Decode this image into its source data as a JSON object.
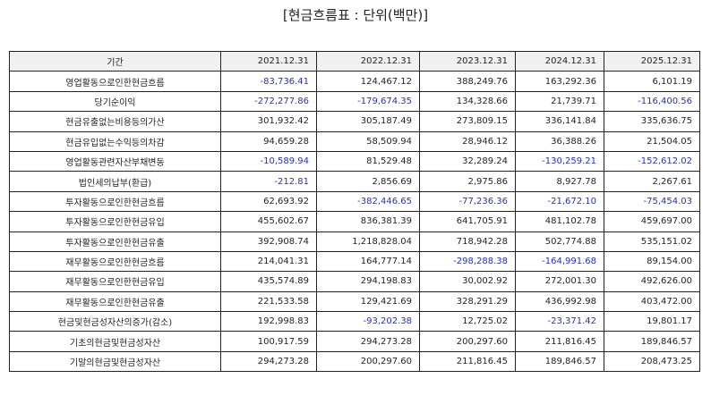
{
  "title": "[현금흐름표 : 단위(백만)]",
  "header": {
    "period_label": "기간",
    "years": [
      "2021.12.31",
      "2022.12.31",
      "2023.12.31",
      "2024.12.31",
      "2025.12.31"
    ]
  },
  "rows": [
    {
      "label": "영업활동으로인한현금흐름",
      "values": [
        "-83,736.41",
        "124,467.12",
        "388,249.76",
        "163,292.36",
        "6,101.19"
      ]
    },
    {
      "label": "당기순이익",
      "values": [
        "-272,277.86",
        "-179,674.35",
        "134,328.66",
        "21,739.71",
        "-116,400.56"
      ]
    },
    {
      "label": "현금유출없는비용등의가산",
      "values": [
        "301,932.42",
        "305,187.49",
        "273,809.15",
        "336,141.84",
        "335,636.75"
      ]
    },
    {
      "label": "현금유입없는수익등의차감",
      "values": [
        "94,659.28",
        "58,509.94",
        "28,946.12",
        "36,388.26",
        "21,504.05"
      ]
    },
    {
      "label": "영업활동관련자산부채변동",
      "values": [
        "-10,589.94",
        "81,529.48",
        "32,289.24",
        "-130,259.21",
        "-152,612.02"
      ]
    },
    {
      "label": "법인세의납부(환급)",
      "values": [
        "-212.81",
        "2,856.69",
        "2,975.86",
        "8,927.78",
        "2,267.61"
      ]
    },
    {
      "label": "투자활동으로인한현금흐름",
      "values": [
        "62,693.92",
        "-382,446.65",
        "-77,236.36",
        "-21,672.10",
        "-75,454.03"
      ]
    },
    {
      "label": "투자활동으로인한현금유입",
      "values": [
        "455,602.67",
        "836,381.39",
        "641,705.91",
        "481,102.78",
        "459,697.00"
      ]
    },
    {
      "label": "투자활동으로인한현금유출",
      "values": [
        "392,908.74",
        "1,218,828.04",
        "718,942.28",
        "502,774.88",
        "535,151.02"
      ]
    },
    {
      "label": "재무활동으로인한현금흐름",
      "values": [
        "214,041.31",
        "164,777.14",
        "-298,288.38",
        "-164,991.68",
        "89,154.00"
      ]
    },
    {
      "label": "재무활동으로인한현금유입",
      "values": [
        "435,574.89",
        "294,198.83",
        "30,002.92",
        "272,001.30",
        "492,626.00"
      ]
    },
    {
      "label": "재무활동으로인한현금유출",
      "values": [
        "221,533.58",
        "129,421.69",
        "328,291.29",
        "436,992.98",
        "403,472.00"
      ]
    },
    {
      "label": "현금및현금성자산의증가(감소)",
      "values": [
        "192,998.83",
        "-93,202.38",
        "12,725.02",
        "-23,371.42",
        "19,801.17"
      ]
    },
    {
      "label": "기초의현금및현금성자산",
      "values": [
        "100,917.59",
        "294,273.28",
        "200,297.60",
        "211,816.45",
        "189,846.57"
      ]
    },
    {
      "label": "기말의현금및현금성자산",
      "values": [
        "294,273.28",
        "200,297.60",
        "211,816.45",
        "189,846.57",
        "208,473.25"
      ]
    }
  ],
  "colors": {
    "negative": "#1f2fd0",
    "text": "#222222",
    "header_bg": "#f0f0f0"
  }
}
